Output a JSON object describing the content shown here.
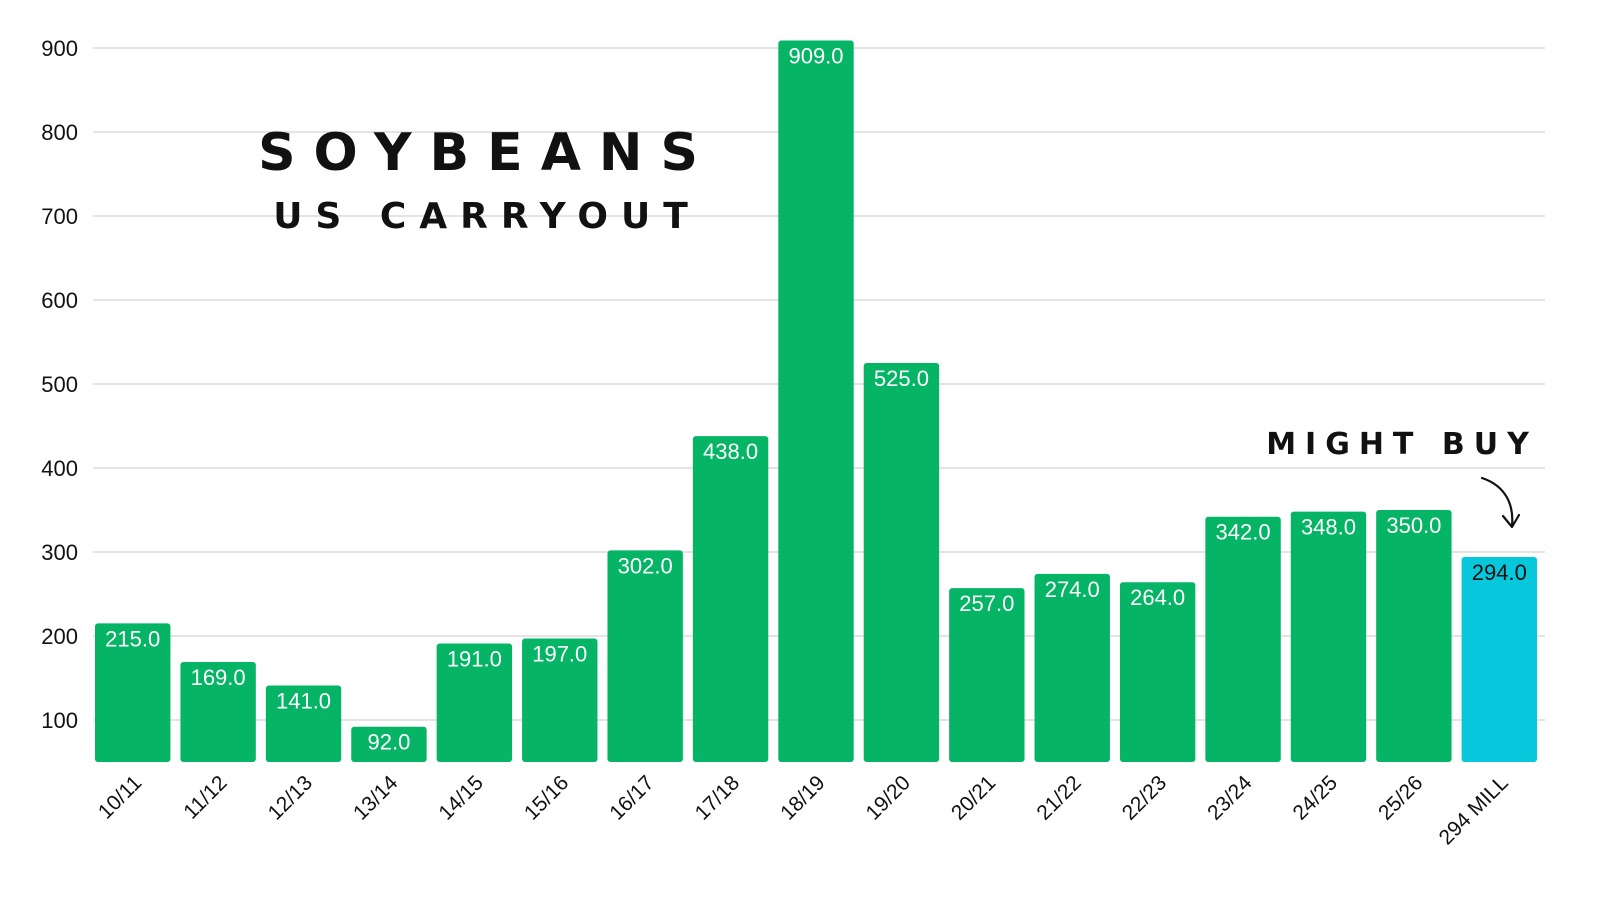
{
  "chart_data": {
    "type": "bar",
    "title": "SOYBEANS",
    "subtitle": "US CARRYOUT",
    "categories": [
      "10/11",
      "11/12",
      "12/13",
      "13/14",
      "14/15",
      "15/16",
      "16/17",
      "17/18",
      "18/19",
      "19/20",
      "20/21",
      "21/22",
      "22/23",
      "23/24",
      "24/25",
      "25/26",
      "294 MILL"
    ],
    "values": [
      215.0,
      169.0,
      141.0,
      92.0,
      191.0,
      197.0,
      302.0,
      438.0,
      909.0,
      525.0,
      257.0,
      274.0,
      264.0,
      342.0,
      348.0,
      350.0,
      294.0
    ],
    "data_labels": [
      "215.0",
      "169.0",
      "141.0",
      "92.0",
      "191.0",
      "197.0",
      "302.0",
      "438.0",
      "909.0",
      "525.0",
      "257.0",
      "274.0",
      "264.0",
      "342.0",
      "348.0",
      "350.0",
      "294.0"
    ],
    "yticks": [
      100,
      200,
      300,
      400,
      500,
      600,
      700,
      800,
      900
    ],
    "ylim": [
      50,
      910
    ],
    "grid": true,
    "xlabel": "",
    "ylabel": "",
    "colors": {
      "default": "#05b565",
      "highlight": "#06c7dc",
      "label_default": "#ffffff",
      "label_highlight": "#111111"
    },
    "highlight_index": 16,
    "annotation": {
      "text": "MIGHT BUY",
      "target_index": 16,
      "icon": "curved-arrow-icon"
    }
  }
}
